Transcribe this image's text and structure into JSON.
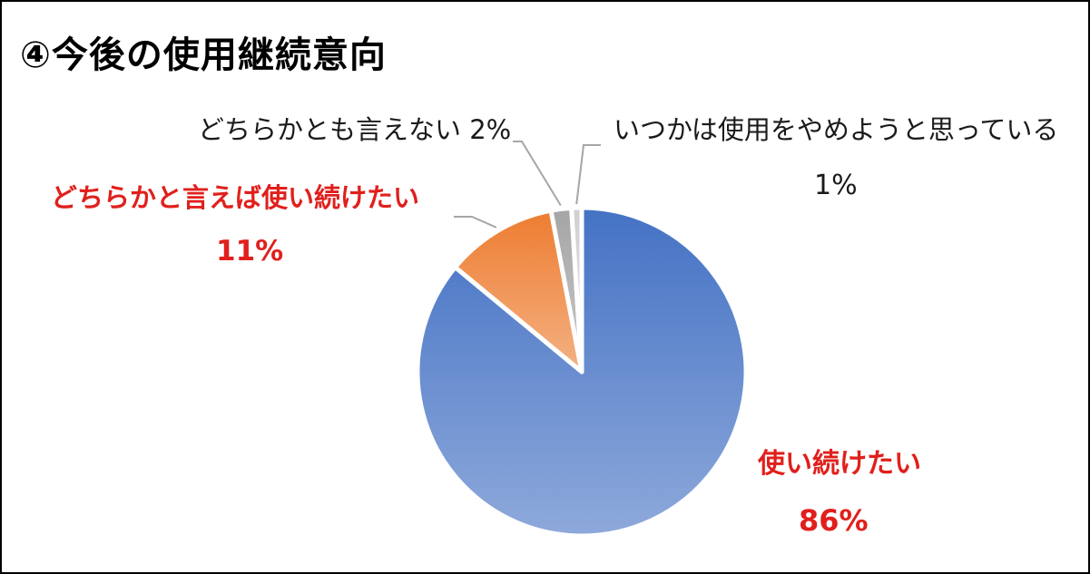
{
  "title": "④今後の使用継続意向",
  "chart_data": {
    "type": "pie",
    "title": "④今後の使用継続意向",
    "start_angle_deg": 0,
    "direction": "clockwise",
    "slices": [
      {
        "name": "使い続けたい",
        "value_label": "86%",
        "value": 86,
        "color_top": "#4472c4",
        "color_bottom": "#8ea9db"
      },
      {
        "name": "どちらかと言えば使い続けたい",
        "value_label": "11%",
        "value": 11,
        "color_top": "#ed7d31",
        "color_bottom": "#f4b183"
      },
      {
        "name": "どちらかとも言えない",
        "value_label": "2%",
        "value": 2,
        "color_top": "#a5a5a5",
        "color_bottom": "#c9c9c9"
      },
      {
        "name": "いつかは使用をやめようと思っている",
        "value_label": "1%",
        "value": 1,
        "color_top": "#d0d0d0",
        "color_bottom": "#e6e6e6"
      }
    ]
  },
  "labels": {
    "continue": {
      "name": "使い続けたい",
      "pct": "86%"
    },
    "rather_continue": {
      "name": "どちらかと言えば使い続けたい",
      "pct": "11%"
    },
    "neither": {
      "text": "どちらかとも言えない 2%"
    },
    "quit": {
      "name": "いつかは使用をやめようと思っている",
      "pct": "1%"
    }
  },
  "colors": {
    "accent_red": "#e0201c",
    "text": "#1a1a1a",
    "border": "#000000"
  }
}
